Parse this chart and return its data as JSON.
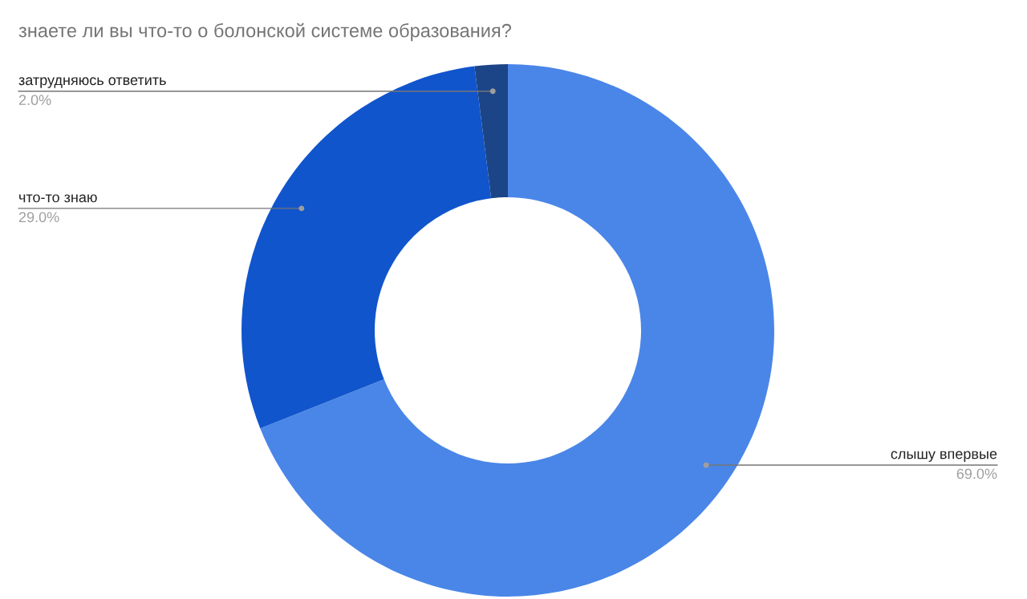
{
  "chart_data": {
    "type": "donut",
    "title": "знаете ли вы что-то о болонской системе образования?",
    "categories": [
      "слышу впервые",
      "что-то знаю",
      "затрудняюсь ответить"
    ],
    "values": [
      69,
      29,
      2
    ],
    "colors": [
      "#4a86e8",
      "#1155cc",
      "#1c4587"
    ],
    "value_labels": [
      "69.0%",
      "29.0%",
      "2.0%"
    ]
  }
}
